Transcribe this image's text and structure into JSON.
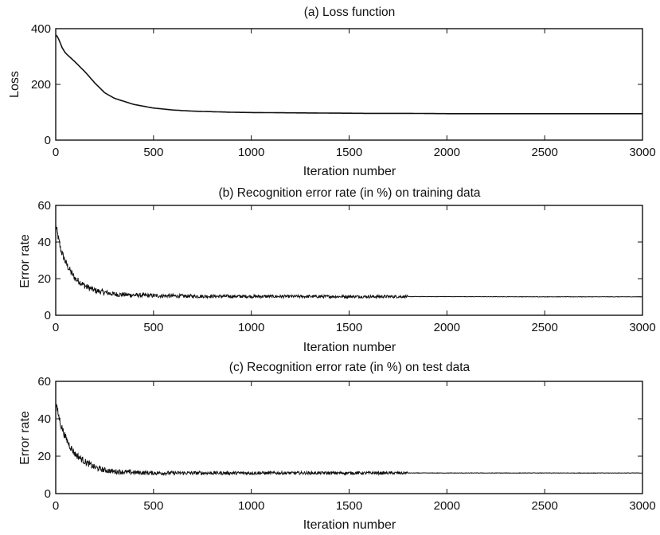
{
  "chart_data": [
    {
      "type": "line",
      "title": "(a) Loss function",
      "xlabel": "Iteration number",
      "ylabel": "Loss",
      "xlim": [
        0,
        3000
      ],
      "ylim": [
        0,
        400
      ],
      "xticks": [
        0,
        500,
        1000,
        1500,
        2000,
        2500,
        3000
      ],
      "yticks": [
        0,
        200,
        400
      ],
      "grid": false,
      "legend": "none",
      "series": [
        {
          "x": [
            0,
            10,
            20,
            30,
            50,
            75,
            100,
            150,
            200,
            250,
            300,
            400,
            500,
            600,
            700,
            800,
            900,
            1000,
            1200,
            1400,
            1600,
            1800,
            2000,
            2200,
            2400,
            2600,
            2800,
            3000
          ],
          "values": [
            378,
            370,
            355,
            335,
            312,
            296,
            280,
            245,
            205,
            170,
            150,
            128,
            115,
            108,
            104,
            102,
            100,
            99,
            98,
            97,
            96,
            96,
            95,
            95,
            95,
            95,
            95,
            95
          ],
          "noise": 0
        }
      ]
    },
    {
      "type": "line",
      "title": "(b) Recognition error rate (in %) on training data",
      "xlabel": "Iteration number",
      "ylabel": "Error rate",
      "xlim": [
        0,
        3000
      ],
      "ylim": [
        0,
        60
      ],
      "xticks": [
        0,
        500,
        1000,
        1500,
        2000,
        2500,
        3000
      ],
      "yticks": [
        0,
        20,
        40,
        60
      ],
      "grid": false,
      "legend": "none",
      "series": [
        {
          "x": [
            0,
            10,
            25,
            50,
            75,
            100,
            150,
            200,
            250,
            300,
            400,
            500,
            700,
            1000,
            1500,
            2000,
            2500,
            3000
          ],
          "values": [
            49,
            44,
            36,
            29,
            24,
            20,
            16,
            13.5,
            12.5,
            11.5,
            11,
            10.7,
            10.4,
            10.3,
            10.2,
            10.2,
            10.1,
            10.1
          ],
          "noise": 2.2
        }
      ]
    },
    {
      "type": "line",
      "title": "(c) Recognition error rate (in %) on test data",
      "xlabel": "Iteration number",
      "ylabel": "Error rate",
      "xlim": [
        0,
        3000
      ],
      "ylim": [
        0,
        60
      ],
      "xticks": [
        0,
        500,
        1000,
        1500,
        2000,
        2500,
        3000
      ],
      "yticks": [
        0,
        20,
        40,
        60
      ],
      "grid": false,
      "legend": "none",
      "series": [
        {
          "x": [
            0,
            10,
            25,
            50,
            75,
            100,
            150,
            200,
            250,
            300,
            400,
            500,
            700,
            1000,
            1500,
            2000,
            2500,
            3000
          ],
          "values": [
            48,
            44,
            37,
            30,
            25,
            21,
            17,
            14,
            12.5,
            11.8,
            11.3,
            11,
            11,
            11,
            11,
            11,
            11,
            11
          ],
          "noise": 2.2
        }
      ]
    }
  ]
}
